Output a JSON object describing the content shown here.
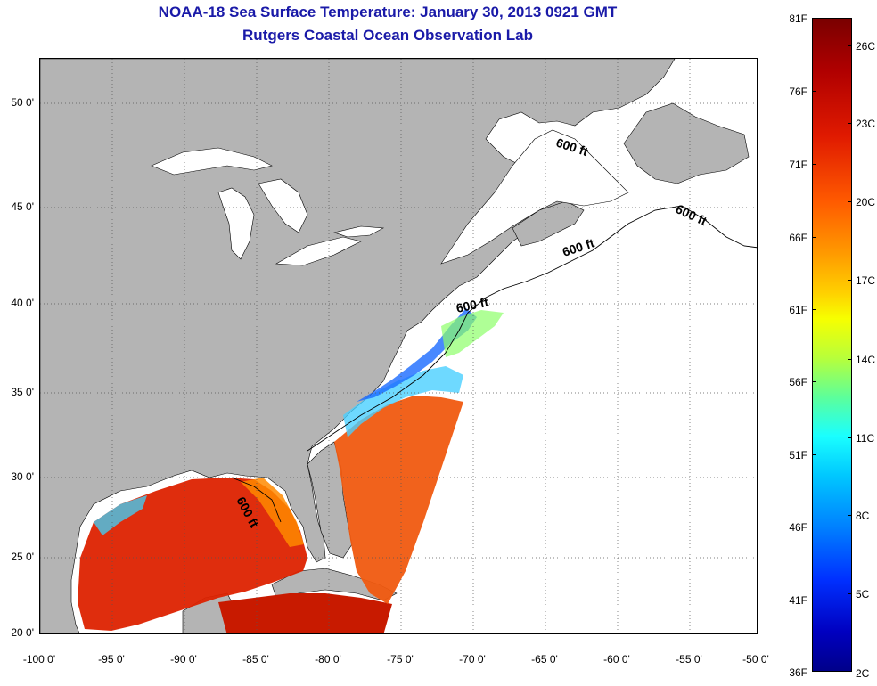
{
  "header": {
    "title_line1": "NOAA-18 Sea Surface Temperature:  January 30, 2013 0921 GMT",
    "title_line2": "Rutgers Coastal Ocean Observation Lab"
  },
  "map": {
    "lat_labels": [
      "50 0'",
      "45 0'",
      "40 0'",
      "35 0'",
      "30 0'",
      "25 0'",
      "20 0'"
    ],
    "lon_labels": [
      "-100 0'",
      "-95 0'",
      "-90 0'",
      "-85 0'",
      "-80 0'",
      "-75 0'",
      "-70 0'",
      "-65 0'",
      "-60 0'",
      "-55 0'",
      "-50 0'"
    ],
    "contour_label": "600 ft",
    "colors": {
      "land": "#b4b4b4",
      "ocean_no_data": "#ffffff",
      "title": "#1a1aa8",
      "warm": "#dd2200",
      "cool": "#1a6aff"
    }
  },
  "colorbar": {
    "fahrenheit_labels": [
      "81F",
      "76F",
      "71F",
      "66F",
      "61F",
      "56F",
      "51F",
      "46F",
      "41F",
      "36F"
    ],
    "celsius_labels": [
      "26C",
      "23C",
      "20C",
      "17C",
      "14C",
      "11C",
      "8C",
      "5C",
      "2C"
    ]
  }
}
